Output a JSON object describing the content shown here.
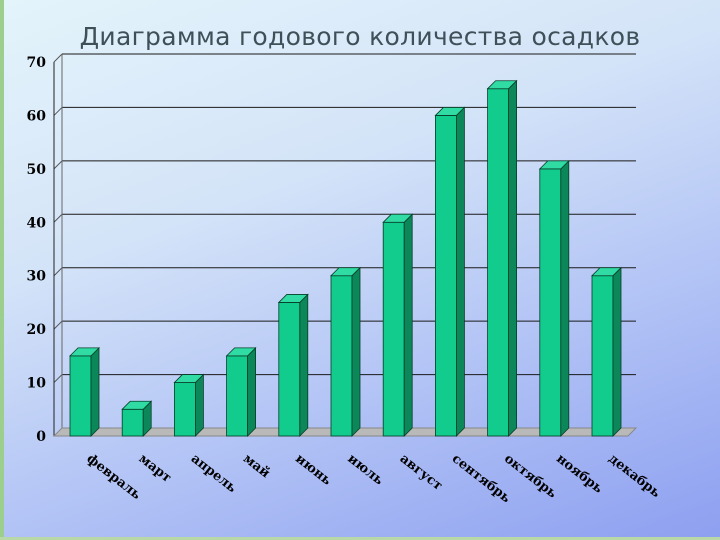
{
  "colors": {
    "bar_front": "#12cc8e",
    "bar_side": "#0b8759",
    "bar_top": "#30dca3",
    "gridline": "#1a1a1a"
  },
  "chart_data": {
    "type": "bar",
    "title": "Диаграмма годового количества осадков",
    "xlabel": "",
    "ylabel": "",
    "categories": [
      "февраль",
      "март",
      "апрель",
      "май",
      "июнь",
      "июль",
      "август",
      "сентябрь",
      "октябрь",
      "ноябрь",
      "декабрь"
    ],
    "values": [
      15,
      5,
      10,
      15,
      25,
      30,
      40,
      60,
      65,
      50,
      30
    ],
    "ylim": [
      0,
      70
    ],
    "yticks": [
      0,
      10,
      20,
      30,
      40,
      50,
      60,
      70
    ],
    "grid": true,
    "style": "3d"
  }
}
